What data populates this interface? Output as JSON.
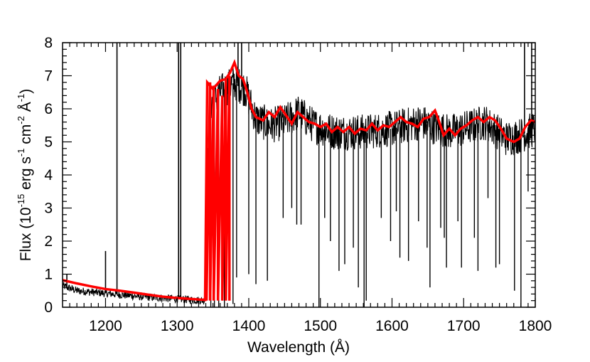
{
  "chart_data": {
    "type": "line",
    "title": "",
    "xlabel": "Wavelength (Å)",
    "ylabel": {
      "prefix": "Flux (10",
      "exp1": "-15",
      "mid1": " erg s",
      "exp2": "-1",
      "mid2": " cm",
      "exp3": "-2",
      "mid3": " Å",
      "exp4": "-1",
      "suffix": ")"
    },
    "xlim": [
      1140,
      1800
    ],
    "ylim": [
      0,
      8
    ],
    "x_ticks": [
      1200,
      1300,
      1400,
      1500,
      1600,
      1700,
      1800
    ],
    "y_ticks": [
      0,
      1,
      2,
      3,
      4,
      5,
      6,
      7,
      8
    ],
    "grid": false,
    "series": [
      {
        "color": "#000000",
        "style": "noisy-spectrum",
        "continuum": [
          [
            1140,
            0.65
          ],
          [
            1160,
            0.5
          ],
          [
            1200,
            0.42
          ],
          [
            1250,
            0.32
          ],
          [
            1300,
            0.25
          ],
          [
            1338,
            0.2
          ],
          [
            1345,
            6.1
          ],
          [
            1360,
            6.5
          ],
          [
            1380,
            6.8
          ],
          [
            1395,
            6.6
          ],
          [
            1410,
            5.7
          ],
          [
            1430,
            5.5
          ],
          [
            1450,
            5.6
          ],
          [
            1470,
            5.9
          ],
          [
            1490,
            5.5
          ],
          [
            1520,
            5.3
          ],
          [
            1560,
            5.3
          ],
          [
            1600,
            5.4
          ],
          [
            1640,
            5.6
          ],
          [
            1680,
            5.3
          ],
          [
            1700,
            5.4
          ],
          [
            1730,
            5.6
          ],
          [
            1760,
            5.1
          ],
          [
            1780,
            5.2
          ],
          [
            1800,
            5.4
          ]
        ],
        "spikes": [
          [
            1146,
            1.0
          ],
          [
            1200,
            1.7
          ],
          [
            1216,
            8.0
          ],
          [
            1302,
            8.0
          ],
          [
            1305,
            8.0
          ],
          [
            1385,
            8.0
          ],
          [
            1390,
            8.0
          ],
          [
            1785,
            8.0
          ],
          [
            1795,
            8.0
          ]
        ],
        "dips": [
          [
            1347,
            0.0
          ],
          [
            1352,
            0.0
          ],
          [
            1358,
            0.0
          ],
          [
            1366,
            0.0
          ],
          [
            1378,
            0.1
          ],
          [
            1383,
            0.9
          ],
          [
            1400,
            1.0
          ],
          [
            1410,
            0.7
          ],
          [
            1426,
            0.8
          ],
          [
            1448,
            2.7
          ],
          [
            1460,
            3.0
          ],
          [
            1467,
            2.5
          ],
          [
            1473,
            2.5
          ],
          [
            1498,
            0.0
          ],
          [
            1506,
            2.7
          ],
          [
            1514,
            2.0
          ],
          [
            1526,
            1.1
          ],
          [
            1534,
            1.3
          ],
          [
            1546,
            1.8
          ],
          [
            1553,
            0.6
          ],
          [
            1561,
            0.0
          ],
          [
            1564,
            0.2
          ],
          [
            1585,
            2.7
          ],
          [
            1598,
            2.0
          ],
          [
            1606,
            2.9
          ],
          [
            1611,
            1.5
          ],
          [
            1623,
            1.4
          ],
          [
            1637,
            2.6
          ],
          [
            1649,
            1.8
          ],
          [
            1653,
            0.6
          ],
          [
            1668,
            2.4
          ],
          [
            1673,
            2.1
          ],
          [
            1676,
            1.2
          ],
          [
            1692,
            2.6
          ],
          [
            1697,
            1.2
          ],
          [
            1715,
            2.1
          ],
          [
            1720,
            1.1
          ],
          [
            1734,
            3.3
          ],
          [
            1745,
            1.2
          ],
          [
            1750,
            1.3
          ],
          [
            1771,
            0.5
          ],
          [
            1780,
            0.0
          ],
          [
            1790,
            3.5
          ]
        ]
      },
      {
        "color": "#ff0000",
        "style": "binned-model",
        "points": [
          [
            1140,
            0.82
          ],
          [
            1160,
            0.72
          ],
          [
            1180,
            0.63
          ],
          [
            1200,
            0.55
          ],
          [
            1220,
            0.5
          ],
          [
            1240,
            0.44
          ],
          [
            1260,
            0.38
          ],
          [
            1280,
            0.32
          ],
          [
            1300,
            0.28
          ],
          [
            1320,
            0.25
          ],
          [
            1339,
            0.22
          ],
          [
            1342,
            6.8
          ],
          [
            1350,
            6.6
          ],
          [
            1360,
            6.85
          ],
          [
            1368,
            6.9
          ],
          [
            1374,
            7.1
          ],
          [
            1380,
            7.4
          ],
          [
            1386,
            7.0
          ],
          [
            1392,
            6.9
          ],
          [
            1398,
            6.5
          ],
          [
            1404,
            6.0
          ],
          [
            1410,
            5.75
          ],
          [
            1420,
            5.65
          ],
          [
            1428,
            5.9
          ],
          [
            1436,
            5.75
          ],
          [
            1444,
            6.05
          ],
          [
            1452,
            5.8
          ],
          [
            1460,
            5.55
          ],
          [
            1468,
            5.9
          ],
          [
            1476,
            5.75
          ],
          [
            1484,
            5.6
          ],
          [
            1492,
            5.55
          ],
          [
            1500,
            5.45
          ],
          [
            1508,
            5.55
          ],
          [
            1516,
            5.3
          ],
          [
            1524,
            5.45
          ],
          [
            1532,
            5.3
          ],
          [
            1540,
            5.45
          ],
          [
            1548,
            5.25
          ],
          [
            1556,
            5.4
          ],
          [
            1564,
            5.35
          ],
          [
            1572,
            5.55
          ],
          [
            1580,
            5.35
          ],
          [
            1588,
            5.5
          ],
          [
            1596,
            5.45
          ],
          [
            1604,
            5.6
          ],
          [
            1612,
            5.75
          ],
          [
            1620,
            5.6
          ],
          [
            1628,
            5.55
          ],
          [
            1636,
            5.45
          ],
          [
            1644,
            5.7
          ],
          [
            1652,
            5.75
          ],
          [
            1660,
            5.95
          ],
          [
            1666,
            5.6
          ],
          [
            1672,
            5.2
          ],
          [
            1680,
            5.4
          ],
          [
            1688,
            5.2
          ],
          [
            1696,
            5.4
          ],
          [
            1704,
            5.5
          ],
          [
            1712,
            5.65
          ],
          [
            1720,
            5.75
          ],
          [
            1728,
            5.6
          ],
          [
            1736,
            5.75
          ],
          [
            1744,
            5.65
          ],
          [
            1752,
            5.4
          ],
          [
            1760,
            5.1
          ],
          [
            1770,
            5.0
          ],
          [
            1778,
            5.1
          ],
          [
            1786,
            5.45
          ],
          [
            1794,
            5.65
          ],
          [
            1800,
            5.6
          ]
        ],
        "dropouts": [
          [
            1341,
            0.2
          ],
          [
            1346,
            6.8
          ],
          [
            1346,
            0.2
          ],
          [
            1351,
            6.7
          ],
          [
            1351,
            0.2
          ],
          [
            1357,
            6.6
          ],
          [
            1357,
            0.2
          ],
          [
            1363,
            6.4
          ],
          [
            1363,
            0.2
          ],
          [
            1368,
            6.9
          ],
          [
            1368,
            0.2
          ],
          [
            1373,
            7.0
          ],
          [
            1373,
            0.2
          ]
        ]
      }
    ]
  }
}
